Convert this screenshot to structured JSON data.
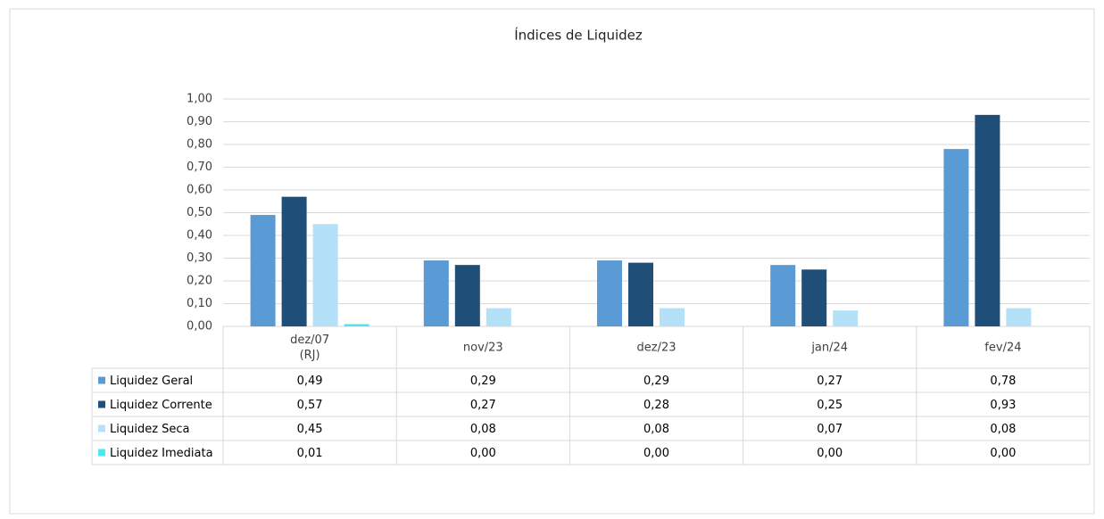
{
  "chart_data": {
    "type": "bar",
    "title": "Índices de Liquidez",
    "categories": [
      "dez/07\n(RJ)",
      "nov/23",
      "dez/23",
      "jan/24",
      "fev/24"
    ],
    "series": [
      {
        "name": "Liquidez Geral",
        "color": "#5b9bd5",
        "values": [
          0.49,
          0.29,
          0.29,
          0.27,
          0.78
        ],
        "value_labels": [
          "0,49",
          "0,29",
          "0,29",
          "0,27",
          "0,78"
        ]
      },
      {
        "name": "Liquidez Corrente",
        "color": "#1f4e79",
        "values": [
          0.57,
          0.27,
          0.28,
          0.25,
          0.93
        ],
        "value_labels": [
          "0,57",
          "0,27",
          "0,28",
          "0,25",
          "0,93"
        ]
      },
      {
        "name": "Liquidez Seca",
        "color": "#b4e1f8",
        "values": [
          0.45,
          0.08,
          0.08,
          0.07,
          0.08
        ],
        "value_labels": [
          "0,45",
          "0,08",
          "0,08",
          "0,07",
          "0,08"
        ]
      },
      {
        "name": "Liquidez Imediata",
        "color": "#4ee6f2",
        "values": [
          0.01,
          0,
          0,
          0,
          0
        ],
        "value_labels": [
          "0,01",
          "0,00",
          "0,00",
          "0,00",
          "0,00"
        ]
      }
    ],
    "ylim": [
      0,
      1
    ],
    "yticks": [
      {
        "value": 0,
        "label": "0,00"
      },
      {
        "value": 0.1,
        "label": "0,10"
      },
      {
        "value": 0.2,
        "label": "0,20"
      },
      {
        "value": 0.3,
        "label": "0,30"
      },
      {
        "value": 0.4,
        "label": "0,40"
      },
      {
        "value": 0.5,
        "label": "0,50"
      },
      {
        "value": 0.6,
        "label": "0,60"
      },
      {
        "value": 0.7,
        "label": "0,70"
      },
      {
        "value": 0.8,
        "label": "0,80"
      },
      {
        "value": 0.9,
        "label": "0,90"
      },
      {
        "value": 1,
        "label": "1,00"
      }
    ],
    "grid": true
  }
}
